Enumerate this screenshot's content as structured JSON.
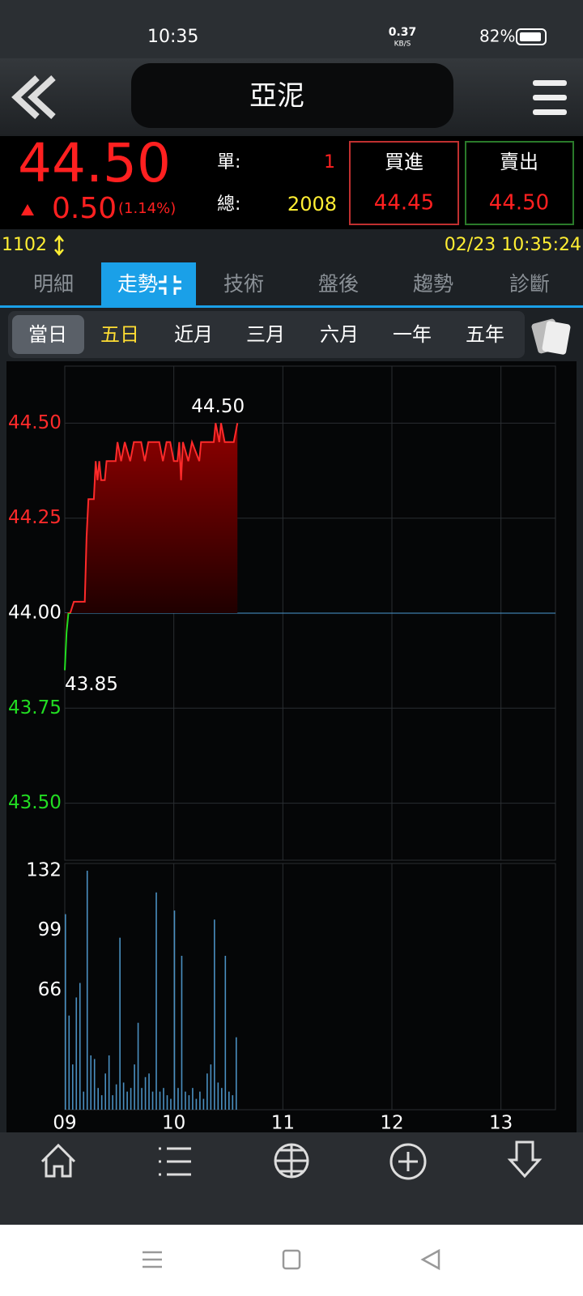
{
  "status_bar": {
    "time": "10:35",
    "speed": "0.37",
    "speed_unit": "KB/S",
    "battery": "82%"
  },
  "header": {
    "title": "亞泥"
  },
  "quote": {
    "price": "44.50",
    "change": "0.50",
    "change_pct": "(1.14%)",
    "single_label": "單:",
    "single_value": "1",
    "total_label": "總:",
    "total_value": "2008",
    "buy_label": "買進",
    "buy_price": "44.45",
    "sell_label": "賣出",
    "sell_price": "44.50"
  },
  "info": {
    "code": "1102",
    "datetime": "02/23 10:35:24"
  },
  "tabs": [
    "明細",
    "走勢",
    "技術",
    "盤後",
    "趨勢",
    "診斷"
  ],
  "periods": [
    "當日",
    "五日",
    "近月",
    "三月",
    "六月",
    "一年",
    "五年"
  ],
  "chart_data": [
    {
      "type": "line",
      "color": "#ff2a2a",
      "below_color": "#22dd22",
      "reference_line": 44,
      "xlim": [
        540,
        810
      ],
      "ylim": [
        43.35,
        44.65
      ],
      "xticks": [
        {
          "value": 540,
          "label": "09"
        },
        {
          "value": 600,
          "label": "10"
        },
        {
          "value": 660,
          "label": "11"
        },
        {
          "value": 720,
          "label": "12"
        },
        {
          "value": 780,
          "label": "13"
        }
      ],
      "yticks": [
        {
          "value": 43.5,
          "label": "43.50"
        },
        {
          "value": 43.75,
          "label": "43.75"
        },
        {
          "value": 44,
          "label": "44.00"
        },
        {
          "value": 44.25,
          "label": "44.25"
        },
        {
          "value": 44.5,
          "label": "44.50"
        }
      ],
      "grid": true,
      "x": [
        540,
        541,
        542,
        543,
        545,
        551,
        552,
        553,
        556,
        557,
        558,
        559,
        560,
        562,
        563,
        568,
        569,
        571,
        573,
        576,
        578,
        582,
        584,
        586,
        592,
        594,
        596,
        598,
        600,
        602,
        603,
        604,
        605,
        608,
        610,
        614,
        615,
        622,
        623,
        625,
        626,
        628,
        633,
        635
      ],
      "values": [
        43.85,
        43.95,
        44.0,
        44.0,
        44.03,
        44.03,
        44.2,
        44.3,
        44.3,
        44.4,
        44.35,
        44.4,
        44.35,
        44.35,
        44.4,
        44.4,
        44.45,
        44.4,
        44.45,
        44.4,
        44.45,
        44.45,
        44.4,
        44.45,
        44.45,
        44.4,
        44.45,
        44.45,
        44.4,
        44.4,
        44.45,
        44.35,
        44.45,
        44.4,
        44.45,
        44.4,
        44.45,
        44.45,
        44.5,
        44.45,
        44.5,
        44.45,
        44.45,
        44.5
      ],
      "annotations": [
        {
          "text": "44.50",
          "x": 623,
          "y": 44.5
        },
        {
          "text": "43.85",
          "x": 540,
          "y": 43.85
        }
      ]
    },
    {
      "type": "bar",
      "color": "#4a8fc0",
      "xlim": [
        540,
        810
      ],
      "ylim": [
        0,
        136
      ],
      "yticks": [
        66,
        99,
        132
      ],
      "x": [
        540,
        542,
        544,
        546,
        548,
        550,
        552,
        554,
        556,
        558,
        560,
        562,
        564,
        566,
        568,
        570,
        572,
        574,
        576,
        578,
        580,
        582,
        584,
        586,
        588,
        590,
        592,
        594,
        596,
        598,
        600,
        602,
        604,
        606,
        608,
        610,
        612,
        614,
        616,
        618,
        620,
        622,
        624,
        626,
        628,
        630,
        632,
        634
      ],
      "values": [
        108,
        52,
        25,
        62,
        70,
        10,
        132,
        30,
        28,
        12,
        8,
        20,
        30,
        8,
        14,
        95,
        15,
        10,
        12,
        25,
        48,
        12,
        18,
        20,
        10,
        120,
        10,
        12,
        8,
        6,
        110,
        12,
        85,
        10,
        8,
        12,
        6,
        10,
        6,
        20,
        25,
        105,
        15,
        12,
        85,
        10,
        8,
        40
      ]
    }
  ]
}
